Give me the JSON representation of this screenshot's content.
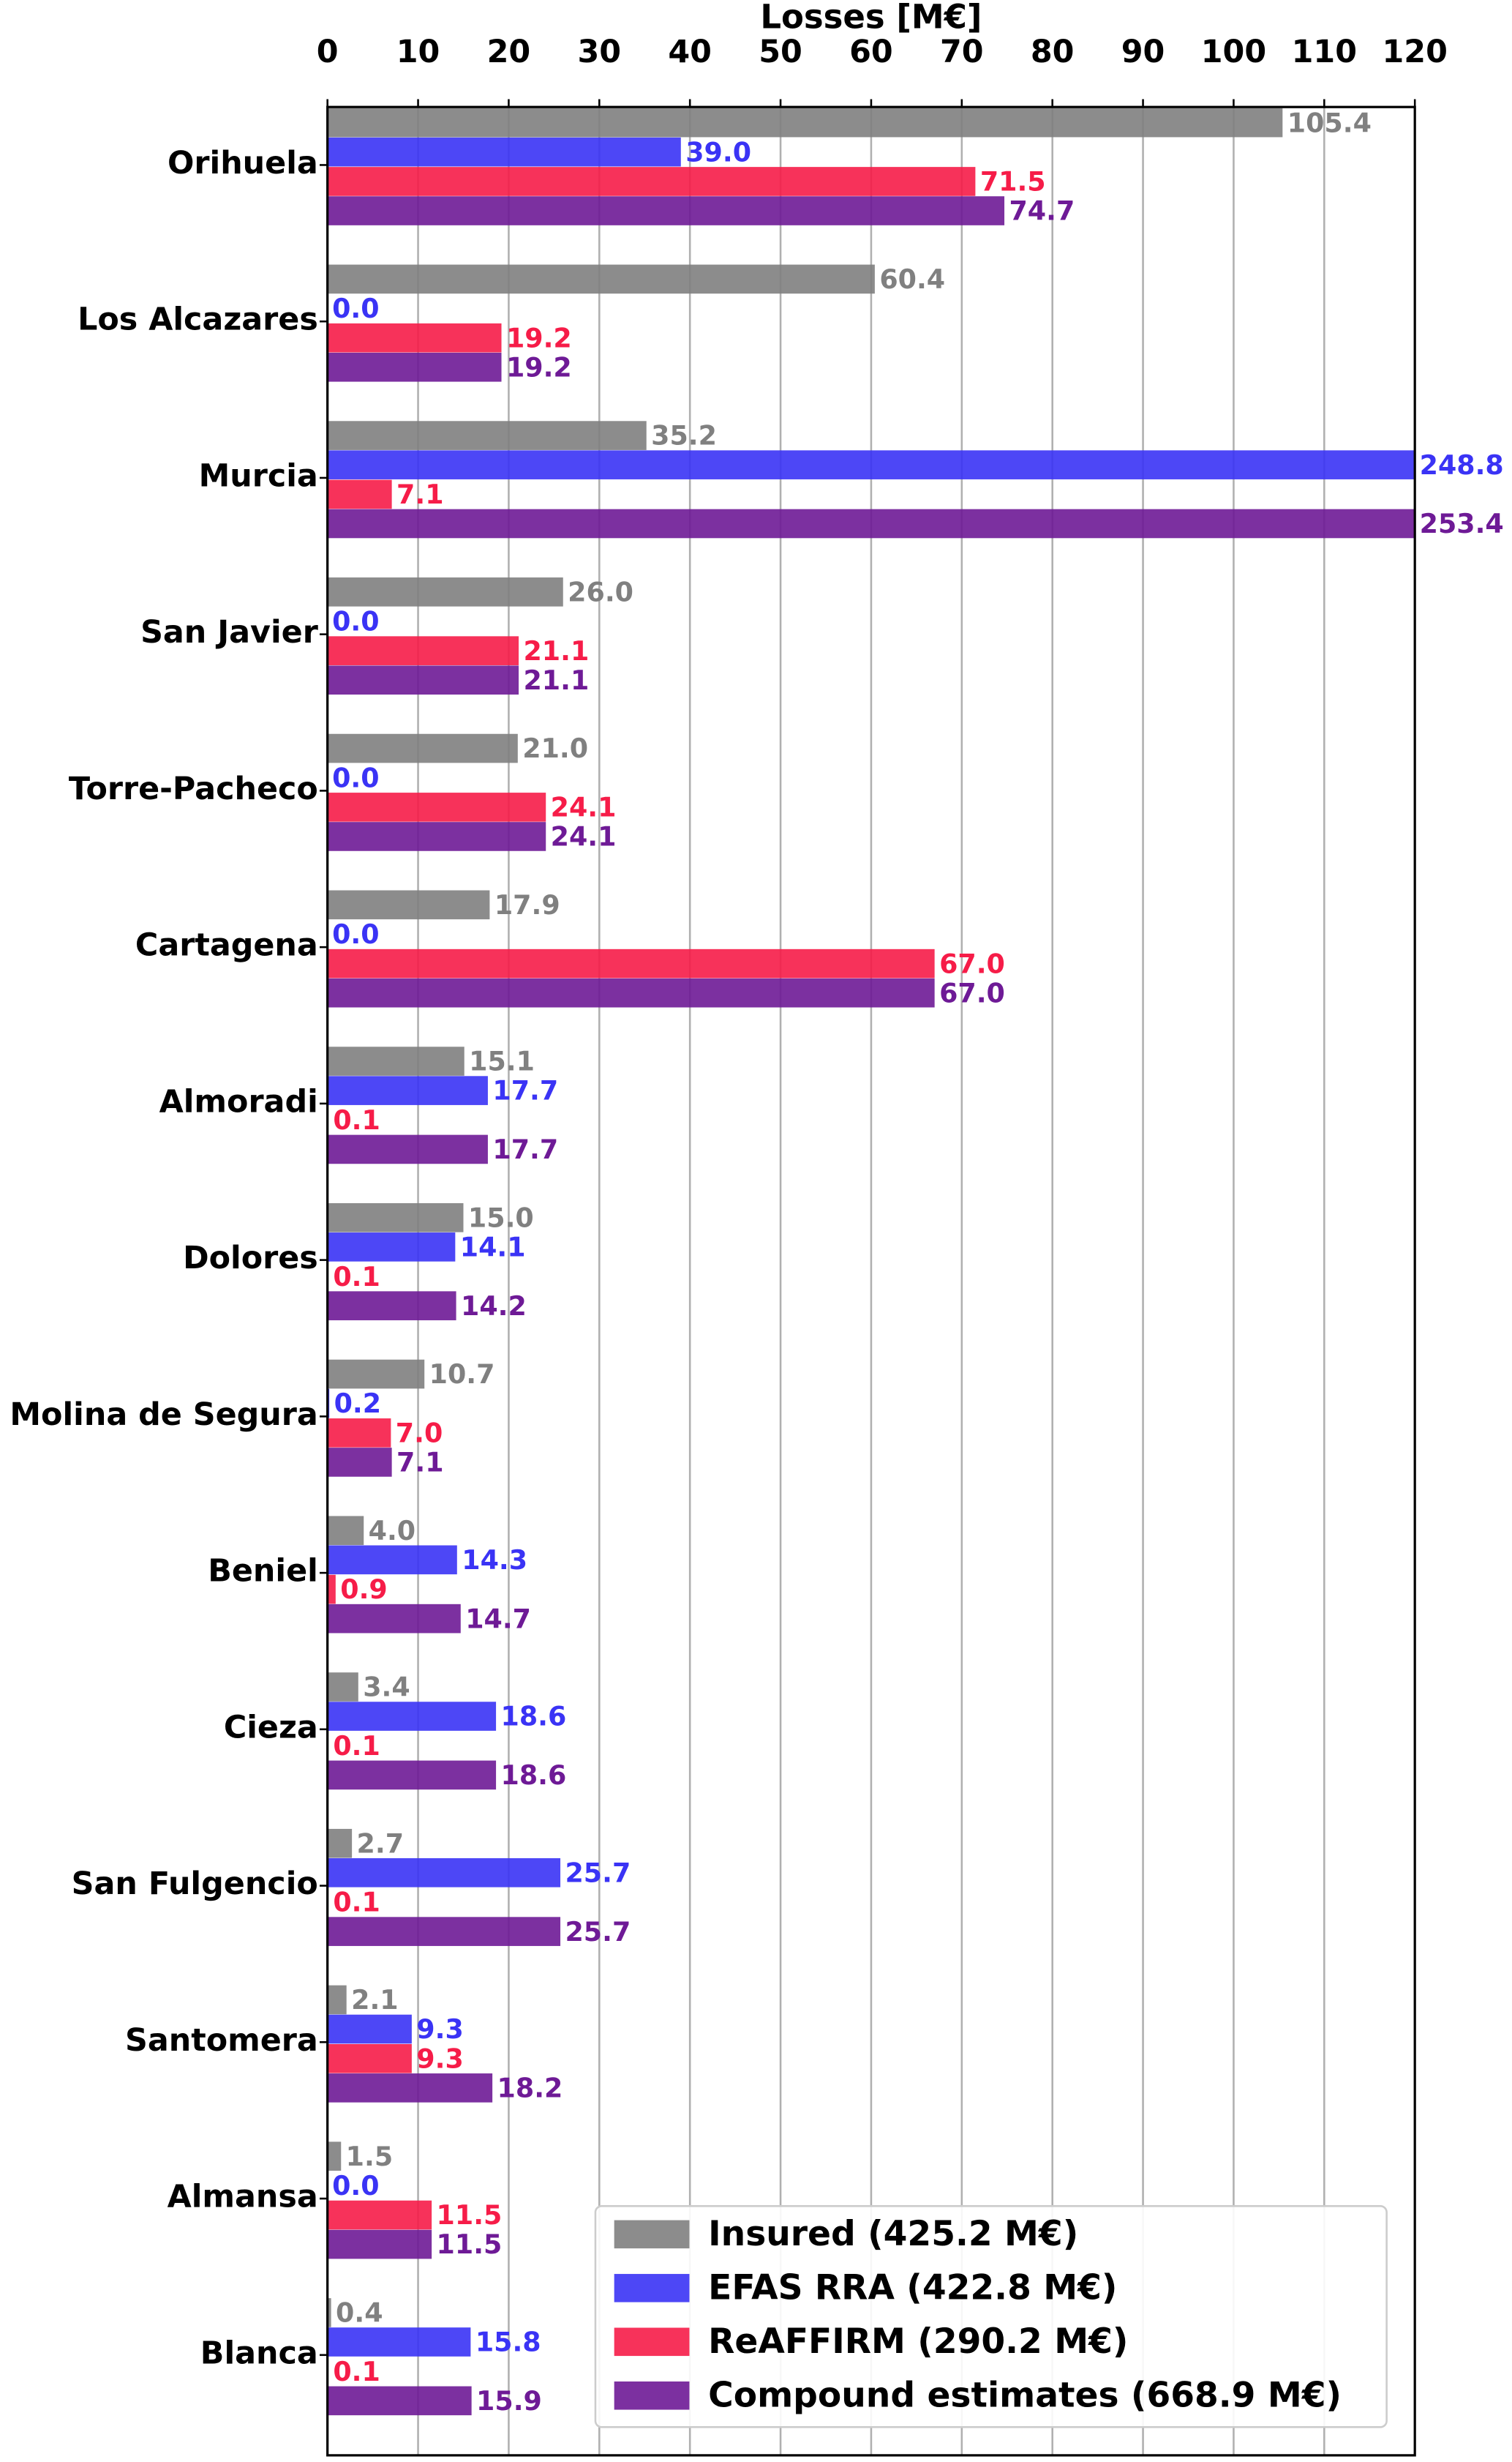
{
  "chart_data": {
    "type": "barh",
    "xlabel": "Losses [M€]",
    "categories": [
      "Orihuela",
      "Los Alcazares",
      "Murcia",
      "San Javier",
      "Torre-Pacheco",
      "Cartagena",
      "Almoradi",
      "Dolores",
      "Molina de Segura",
      "Beniel",
      "Cieza",
      "San Fulgencio",
      "Santomera",
      "Almansa",
      "Blanca"
    ],
    "series": [
      {
        "name": "Insured (425.2 M€)",
        "color": "#808080",
        "values": [
          105.4,
          60.4,
          35.2,
          26.0,
          21.0,
          17.9,
          15.1,
          15.0,
          10.7,
          4.0,
          3.4,
          2.7,
          2.1,
          1.5,
          0.4
        ],
        "value_labels": [
          "105.4",
          "60.4",
          "35.2",
          "26.0",
          "21.0",
          "17.9",
          "15.1",
          "15.0",
          "10.7",
          "4.0",
          "3.4",
          "2.7",
          "2.1",
          "1.5",
          "0.4"
        ]
      },
      {
        "name": "EFAS RRA (422.8 M€)",
        "color": "#3a33f5",
        "values": [
          39.0,
          0.0,
          248.8,
          0.0,
          0.0,
          0.0,
          17.7,
          14.1,
          0.2,
          14.3,
          18.6,
          25.7,
          9.3,
          0.0,
          15.8
        ],
        "value_labels": [
          "39.0",
          "0.0",
          "248.8",
          "0.0",
          "0.0",
          "0.0",
          "17.7",
          "14.1",
          "0.2",
          "14.3",
          "18.6",
          "25.7",
          "9.3",
          "0.0",
          "15.8"
        ]
      },
      {
        "name": "ReAFFIRM (290.2 M€)",
        "color": "#f61c48",
        "values": [
          71.5,
          19.2,
          7.1,
          21.1,
          24.1,
          67.0,
          0.1,
          0.1,
          7.0,
          0.9,
          0.1,
          0.1,
          9.3,
          11.5,
          0.1
        ],
        "value_labels": [
          "71.5",
          "19.2",
          "7.1",
          "21.1",
          "24.1",
          "67.0",
          "0.1",
          "0.1",
          "7.0",
          "0.9",
          "0.1",
          "0.1",
          "9.3",
          "11.5",
          "0.1"
        ]
      },
      {
        "name": "Compound estimates (668.9 M€)",
        "color": "#6e1a96",
        "values": [
          74.7,
          19.2,
          253.4,
          21.1,
          24.1,
          67.0,
          17.7,
          14.2,
          7.1,
          14.7,
          18.6,
          25.7,
          18.2,
          11.5,
          15.9
        ],
        "value_labels": [
          "74.7",
          "19.2",
          "253.4",
          "21.1",
          "24.1",
          "67.0",
          "17.7",
          "14.2",
          "7.1",
          "14.7",
          "18.6",
          "25.7",
          "18.2",
          "11.5",
          "15.9"
        ]
      }
    ],
    "xlim": [
      0,
      120
    ],
    "xticks": [
      0,
      10,
      20,
      30,
      40,
      50,
      60,
      70,
      80,
      90,
      100,
      110,
      120
    ],
    "grid": true,
    "legend": "lower right"
  }
}
